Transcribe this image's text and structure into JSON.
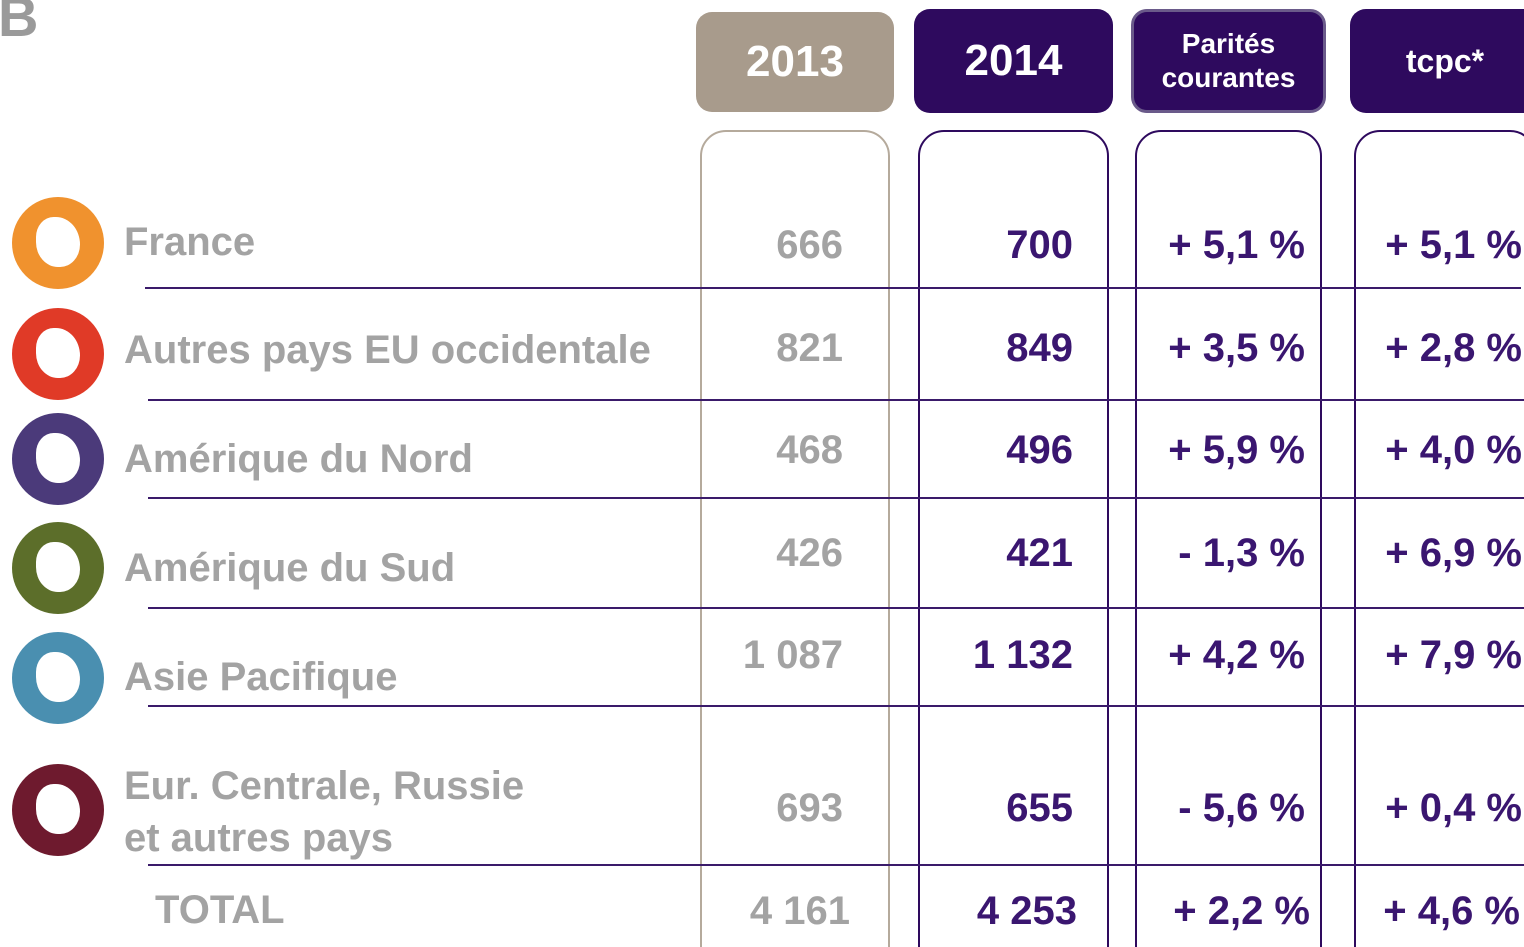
{
  "logo": "B",
  "header": [
    "2013",
    "2014",
    "Parités\ncourantes",
    "tcpc*"
  ],
  "rows": [
    {
      "label": "France",
      "values": [
        "666",
        "700",
        "+ 5,1 %",
        "+ 5,1 %"
      ]
    },
    {
      "label": "Autres pays EU occidentale",
      "values": [
        "821",
        "849",
        "+ 3,5 %",
        "+ 2,8 %"
      ]
    },
    {
      "label": "Amérique du Nord",
      "values": [
        "468",
        "496",
        "+ 5,9 %",
        "+ 4,0 %"
      ]
    },
    {
      "label": "Amérique du Sud",
      "values": [
        "426",
        "421",
        "- 1,3 %",
        "+ 6,9 %"
      ]
    },
    {
      "label": "Asie Pacifique",
      "values": [
        "1 087",
        "1 132",
        "+ 4,2 %",
        "+ 7,9 %"
      ]
    },
    {
      "label": "Eur. Centrale, Russie\net autres pays",
      "values": [
        "693",
        "655",
        "- 5,6 %",
        "+ 0,4 %"
      ]
    }
  ],
  "total": {
    "label": "TOTAL",
    "values": [
      "4 161",
      "4 253",
      "+ 2,2 %",
      "+ 4,6 %"
    ]
  }
}
